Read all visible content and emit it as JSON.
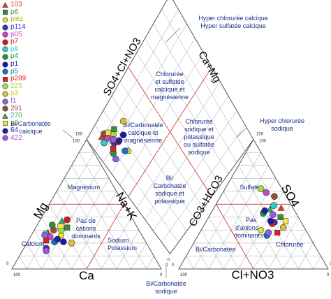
{
  "chart_data": {
    "type": "scatter",
    "subtype": "piper-diagram",
    "axis_labels": {
      "ca": "Ca",
      "mg": "Mg",
      "na_k": "Na+K",
      "cl_no3": "Cl+NO3",
      "so4": "SO4",
      "co3_hco3": "CO3+HCO3",
      "so4_cl_no3": "SO4+Cl+NO3",
      "ca_mg": "Ca+Mg"
    },
    "ticks": {
      "zero": "0",
      "hundred": "100"
    },
    "zones": {
      "cation": [
        "Magnésium",
        "Pas de cations dominants",
        "Sodium Potassium",
        "Calcium"
      ],
      "anion": [
        "Sulfatée",
        "Pas d'anions dominants",
        "Chlorurée",
        "Bi/Carbonatée"
      ],
      "diamond": [
        "Chlorurée et sulfatée calcique et magnésienne",
        "Bi/Carbonatée calcique et magnésienne",
        "Chlorurée sodique et potassique ou sulfatée sodique",
        "Bi/Carbonatée sodique et potassique"
      ],
      "outer": [
        "Hyper chlorurée calcique",
        "Hyper sulfatée calcique",
        "Bi/Carbonatée calcique",
        "Hyper chlorurée sodique",
        "Bi/Carbonatée sodique"
      ]
    },
    "series": [
      {
        "name": "103",
        "color": "#e8401c",
        "marker": "triangle",
        "cation": [
          62,
          28,
          10
        ],
        "anion": [
          8,
          47,
          45
        ]
      },
      {
        "name": "p6",
        "color": "#3d8a3d",
        "marker": "square",
        "cation": [
          47,
          32,
          21
        ],
        "anion": [
          12,
          40,
          48
        ]
      },
      {
        "name": "piéz",
        "color": "#f0e030",
        "marker": "pentagon",
        "cation": [
          54,
          26,
          20
        ],
        "anion": [
          30,
          30,
          40
        ]
      },
      {
        "name": "p114",
        "color": "#3535c8",
        "marker": "circle",
        "cation": [
          69,
          16,
          15
        ],
        "anion": [
          18,
          36,
          46
        ]
      },
      {
        "name": "p05",
        "color": "#d040d0",
        "marker": "circle",
        "cation": [
          62,
          25,
          13
        ],
        "anion": [
          12,
          59,
          29
        ]
      },
      {
        "name": "p7",
        "color": "#d81818",
        "marker": "circle",
        "cation": [
          44,
          38,
          18
        ],
        "anion": [
          20,
          35,
          45
        ]
      },
      {
        "name": "p9",
        "color": "#28d0c8",
        "marker": "circle",
        "cation": [
          64,
          27,
          9
        ],
        "anion": [
          12,
          49,
          39
        ]
      },
      {
        "name": "p4",
        "color": "#1c9a3c",
        "marker": "circle",
        "cation": [
          56,
          34,
          10
        ],
        "anion": [
          22,
          43,
          35
        ]
      },
      {
        "name": "p1",
        "color": "#1818b0",
        "marker": "circle",
        "cation": [
          55,
          21,
          24
        ],
        "anion": [
          20,
          37,
          43
        ]
      },
      {
        "name": "p5",
        "color": "#1870c8",
        "marker": "circle",
        "cation": [
          61,
          21,
          18
        ],
        "anion": [
          28,
          26,
          46
        ]
      },
      {
        "name": "p289",
        "color": "#e02020",
        "marker": "square",
        "cation": [
          66,
          22,
          12
        ],
        "anion": [
          20,
          28,
          52
        ]
      },
      {
        "name": "225",
        "color": "#a0e040",
        "marker": "circle",
        "cation": [
          52,
          30,
          18
        ],
        "anion": [
          14,
          62,
          24
        ]
      },
      {
        "name": "p3",
        "color": "#e0c030",
        "marker": "circle",
        "cation": [
          50,
          20,
          30
        ],
        "anion": [
          14,
          32,
          54
        ]
      },
      {
        "name": "f1",
        "color": "#9060e0",
        "marker": "circle",
        "cation": [
          65,
          26,
          9
        ],
        "anion": [
          26,
          28,
          46
        ]
      },
      {
        "name": "291",
        "color": "#9a5030",
        "marker": "circle",
        "cation": [
          57,
          30,
          13
        ],
        "anion": [
          8,
          56,
          36
        ]
      },
      {
        "name": "270",
        "color": "#30b060",
        "marker": "triangle",
        "cation": [
          48,
          37,
          15
        ],
        "anion": [
          16,
          46,
          38
        ]
      },
      {
        "name": "p2",
        "color": "#f0e840",
        "marker": "square",
        "cation": [
          51,
          33,
          16
        ],
        "anion": [
          10,
          37,
          53
        ]
      },
      {
        "name": "64",
        "color": "#2020a0",
        "marker": "circle",
        "cation": [
          58,
          23,
          19
        ],
        "anion": [
          20,
          45,
          35
        ]
      },
      {
        "name": "422",
        "color": "#b050e0",
        "marker": "circle",
        "cation": [
          70,
          14,
          16
        ],
        "anion": [
          16,
          42,
          42
        ]
      }
    ]
  }
}
